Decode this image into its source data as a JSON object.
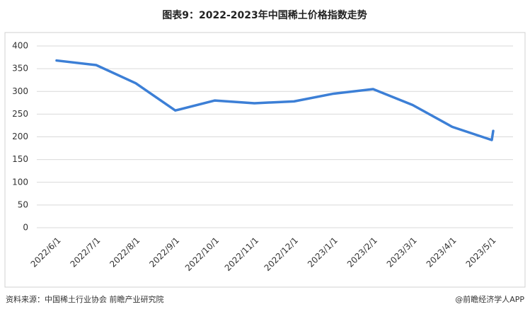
{
  "chart_data": {
    "type": "line",
    "title": "图表9：2022-2023年中国稀土价格指数走势",
    "categories": [
      "2022/6/1",
      "2022/7/1",
      "2022/8/1",
      "2022/9/1",
      "2022/10/1",
      "2022/11/1",
      "2022/12/1",
      "2023/1/1",
      "2023/2/1",
      "2023/3/1",
      "2023/4/1",
      "2023/5/1",
      null
    ],
    "series": [
      {
        "name": "中国稀土价格指数",
        "color": "#3c7fd6",
        "values": [
          368,
          358,
          318,
          258,
          280,
          274,
          278,
          295,
          305,
          270,
          222,
          193,
          213
        ]
      }
    ],
    "ylim": [
      0,
      400
    ],
    "yticks": [
      0,
      50,
      100,
      150,
      200,
      250,
      300,
      350,
      400
    ],
    "grid": true,
    "source": "资料来源：中国稀土行业协会 前瞻产业研究院",
    "brand": "@前瞻经济学人APP"
  }
}
